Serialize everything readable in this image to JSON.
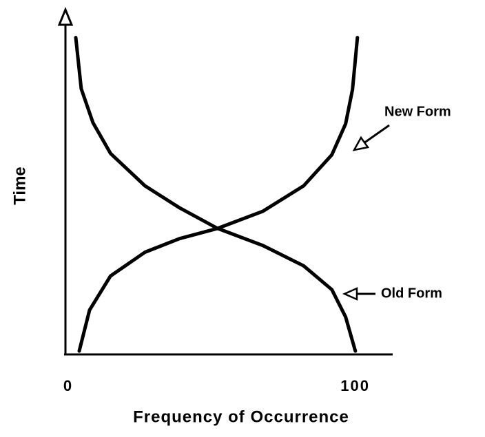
{
  "chart_data": {
    "type": "line",
    "xlabel": "Frequency of Occurrence",
    "ylabel": "Time",
    "xlim": [
      0,
      114
    ],
    "xticks": [
      0,
      100
    ],
    "ylim": [
      0,
      100
    ],
    "series": [
      {
        "name": "New Form",
        "color": "#000000",
        "x": [
          4.8,
          8.4,
          15.7,
          27.7,
          39.8,
          53,
          68.7,
          83,
          92.8,
          97.6,
          100,
          101.7
        ],
        "values": [
          1,
          13,
          23,
          30,
          34,
          37,
          42,
          49.5,
          58.6,
          67.7,
          77.8,
          93
        ]
      },
      {
        "name": "Old Form",
        "color": "#000000",
        "x": [
          3.6,
          5.5,
          9.6,
          15.7,
          27.7,
          39.8,
          53,
          68.7,
          83,
          92.8,
          97.6,
          101
        ],
        "values": [
          93,
          78,
          68,
          59,
          49.5,
          43,
          37,
          32,
          26,
          19,
          11,
          1
        ]
      }
    ]
  }
}
